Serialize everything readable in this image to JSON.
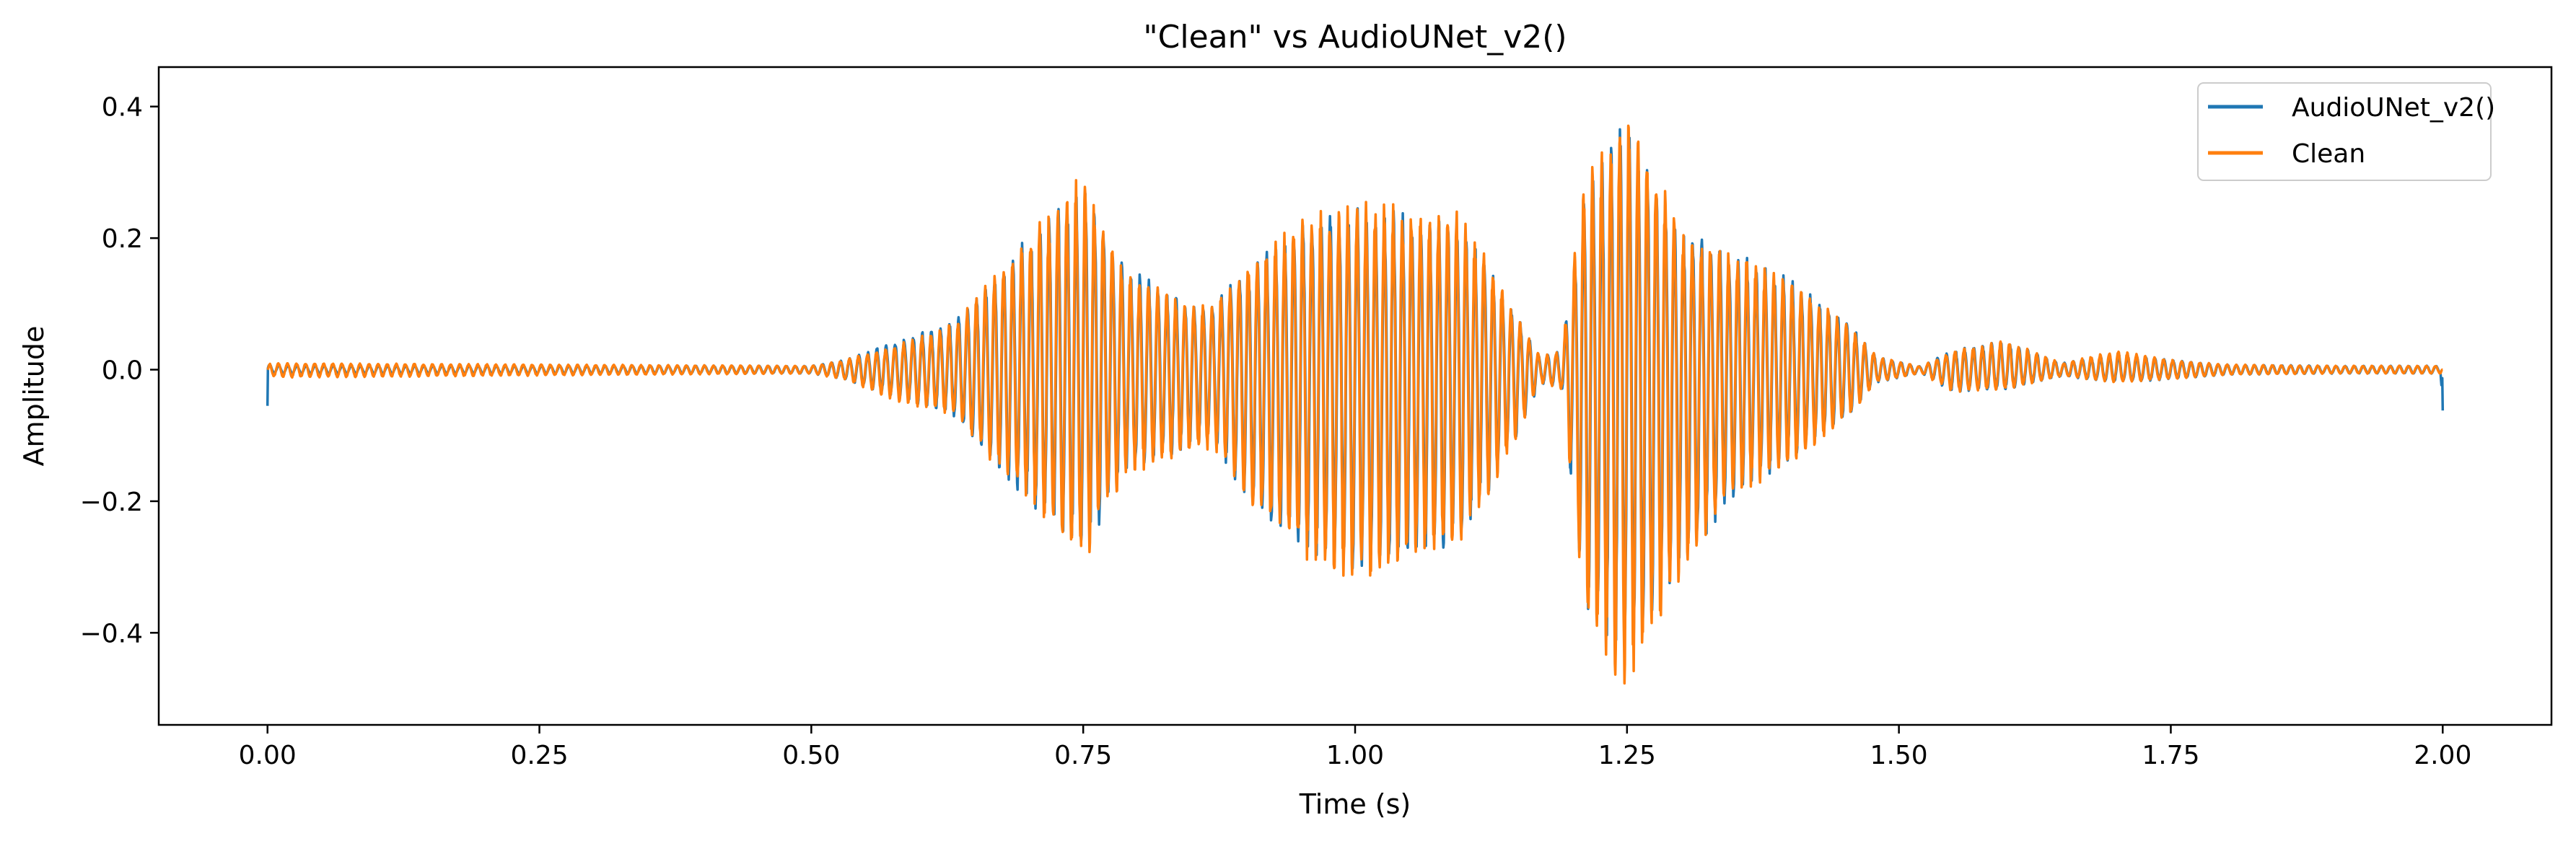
{
  "chart_data": {
    "type": "line",
    "title": "\"Clean\" vs AudioUNet_v2()",
    "xlabel": "Time (s)",
    "ylabel": "Amplitude",
    "xlim": [
      -0.1,
      2.1
    ],
    "ylim": [
      -0.54,
      0.46
    ],
    "xticks": [
      0.0,
      0.25,
      0.5,
      0.75,
      1.0,
      1.25,
      1.5,
      1.75,
      2.0
    ],
    "xtick_labels": [
      "0.00",
      "0.25",
      "0.50",
      "0.75",
      "1.00",
      "1.25",
      "1.50",
      "1.75",
      "2.00"
    ],
    "yticks": [
      -0.4,
      -0.2,
      0.0,
      0.2,
      0.4
    ],
    "ytick_labels": [
      "−0.4",
      "−0.2",
      "0.0",
      "0.2",
      "0.4"
    ],
    "grid": false,
    "legend_position": "top-right",
    "series": [
      {
        "name": "AudioUNet_v2()",
        "color": "#1f77b4",
        "envelope": {
          "t": [
            0.0,
            0.002,
            0.02,
            0.5,
            0.53,
            0.58,
            0.63,
            0.645,
            0.68,
            0.72,
            0.75,
            0.79,
            0.85,
            0.87,
            0.9,
            0.96,
            1.0,
            1.05,
            1.1,
            1.15,
            1.17,
            1.19,
            1.21,
            1.25,
            1.3,
            1.35,
            1.4,
            1.45,
            1.48,
            1.52,
            1.55,
            1.6,
            1.65,
            1.7,
            1.75,
            1.8,
            1.9,
            1.998,
            2.0
          ],
          "max": [
            0.01,
            0.008,
            0.006,
            0.006,
            0.015,
            0.045,
            0.075,
            0.1,
            0.17,
            0.24,
            0.28,
            0.16,
            0.1,
            0.1,
            0.16,
            0.24,
            0.25,
            0.24,
            0.22,
            0.08,
            0.02,
            0.03,
            0.27,
            0.4,
            0.21,
            0.18,
            0.14,
            0.08,
            0.02,
            0.005,
            0.03,
            0.045,
            0.01,
            0.025,
            0.015,
            0.008,
            0.006,
            0.006,
            0.003
          ],
          "min": [
            -0.065,
            -0.005,
            -0.006,
            -0.006,
            -0.015,
            -0.045,
            -0.07,
            -0.1,
            -0.17,
            -0.24,
            -0.29,
            -0.16,
            -0.12,
            -0.11,
            -0.2,
            -0.29,
            -0.31,
            -0.3,
            -0.26,
            -0.1,
            -0.02,
            -0.03,
            -0.37,
            -0.46,
            -0.31,
            -0.19,
            -0.14,
            -0.08,
            -0.02,
            -0.005,
            -0.035,
            -0.03,
            -0.01,
            -0.02,
            -0.015,
            -0.008,
            -0.006,
            -0.006,
            -0.065
          ]
        }
      },
      {
        "name": "Clean",
        "color": "#ff7f0e",
        "envelope": {
          "t": [
            0.0,
            0.002,
            0.02,
            0.5,
            0.53,
            0.58,
            0.63,
            0.645,
            0.68,
            0.72,
            0.75,
            0.79,
            0.85,
            0.87,
            0.9,
            0.96,
            1.0,
            1.05,
            1.1,
            1.15,
            1.17,
            1.19,
            1.21,
            1.25,
            1.3,
            1.35,
            1.4,
            1.45,
            1.48,
            1.52,
            1.55,
            1.6,
            1.65,
            1.7,
            1.75,
            1.8,
            1.9,
            1.998,
            2.0
          ],
          "max": [
            0.0,
            0.01,
            0.01,
            0.006,
            0.015,
            0.04,
            0.07,
            0.1,
            0.17,
            0.25,
            0.3,
            0.15,
            0.1,
            0.1,
            0.17,
            0.24,
            0.26,
            0.25,
            0.24,
            0.08,
            0.02,
            0.03,
            0.29,
            0.42,
            0.21,
            0.18,
            0.14,
            0.08,
            0.02,
            0.005,
            0.03,
            0.045,
            0.01,
            0.03,
            0.015,
            0.008,
            0.006,
            0.006,
            0.0
          ],
          "min": [
            0.0,
            -0.01,
            -0.012,
            -0.006,
            -0.015,
            -0.05,
            -0.07,
            -0.1,
            -0.17,
            -0.25,
            -0.3,
            -0.16,
            -0.13,
            -0.12,
            -0.21,
            -0.3,
            -0.33,
            -0.31,
            -0.27,
            -0.1,
            -0.02,
            -0.03,
            -0.38,
            -0.5,
            -0.32,
            -0.2,
            -0.15,
            -0.08,
            -0.02,
            -0.005,
            -0.035,
            -0.03,
            -0.01,
            -0.02,
            -0.015,
            -0.008,
            -0.006,
            -0.006,
            0.0
          ]
        }
      }
    ]
  }
}
